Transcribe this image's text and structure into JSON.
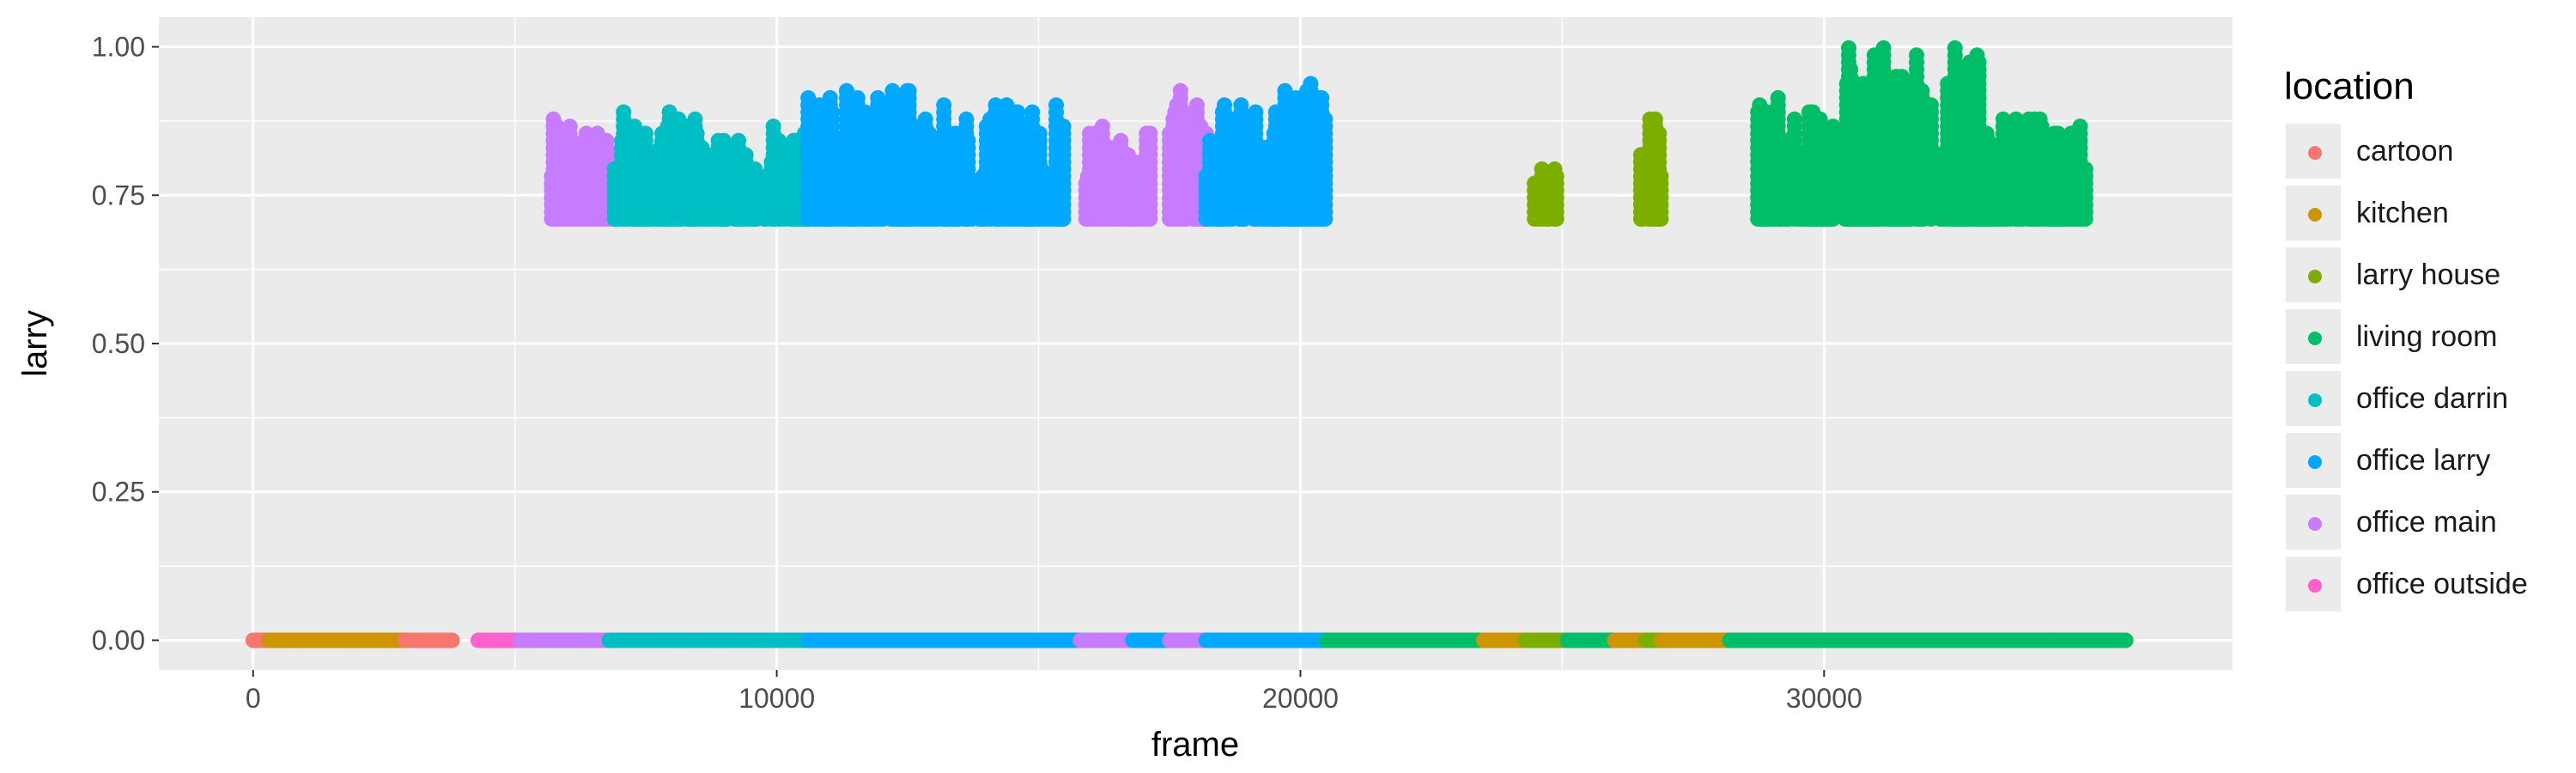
{
  "chart_data": {
    "type": "scatter",
    "xlabel": "frame",
    "ylabel": "larry",
    "xlim": [
      -1800,
      37800
    ],
    "ylim": [
      -0.05,
      1.05
    ],
    "x_ticks": [
      0,
      10000,
      20000,
      30000
    ],
    "x_tick_labels": [
      "0",
      "10000",
      "20000",
      "30000"
    ],
    "y_ticks": [
      0,
      0.25,
      0.5,
      0.75,
      1.0
    ],
    "y_tick_labels": [
      "0.00",
      "0.25",
      "0.50",
      "0.75",
      "1.00"
    ],
    "grid": true,
    "legend": {
      "title": "location",
      "placement": "right",
      "entries": [
        {
          "name": "cartoon",
          "color": "#F8766D"
        },
        {
          "name": "kitchen",
          "color": "#CD9600"
        },
        {
          "name": "larry house",
          "color": "#7CAE00"
        },
        {
          "name": "living room",
          "color": "#00BE67"
        },
        {
          "name": "office darrin",
          "color": "#00BFC4"
        },
        {
          "name": "office larry",
          "color": "#00A9FF"
        },
        {
          "name": "office main",
          "color": "#C77CFF"
        },
        {
          "name": "office outside",
          "color": "#FF61CC"
        }
      ]
    },
    "baseline_segments": [
      {
        "series": "cartoon",
        "y": 0,
        "x_range": [
          0,
          300
        ]
      },
      {
        "series": "kitchen",
        "y": 0,
        "x_range": [
          300,
          2900
        ]
      },
      {
        "series": "cartoon",
        "y": 0,
        "x_range": [
          2900,
          3800
        ]
      },
      {
        "series": "office outside",
        "y": 0,
        "x_range": [
          4300,
          5100
        ]
      },
      {
        "series": "office main",
        "y": 0,
        "x_range": [
          5100,
          6800
        ]
      },
      {
        "series": "office darrin",
        "y": 0,
        "x_range": [
          6800,
          10600
        ]
      },
      {
        "series": "office larry",
        "y": 0,
        "x_range": [
          10600,
          15800
        ]
      },
      {
        "series": "office main",
        "y": 0,
        "x_range": [
          15800,
          16800
        ]
      },
      {
        "series": "office larry",
        "y": 0,
        "x_range": [
          16800,
          17500
        ]
      },
      {
        "series": "office main",
        "y": 0,
        "x_range": [
          17500,
          18200
        ]
      },
      {
        "series": "office larry",
        "y": 0,
        "x_range": [
          18200,
          20500
        ]
      },
      {
        "series": "living room",
        "y": 0,
        "x_range": [
          20500,
          23500
        ]
      },
      {
        "series": "kitchen",
        "y": 0,
        "x_range": [
          23500,
          24300
        ]
      },
      {
        "series": "larry house",
        "y": 0,
        "x_range": [
          24300,
          25100
        ]
      },
      {
        "series": "living room",
        "y": 0,
        "x_range": [
          25100,
          26000
        ]
      },
      {
        "series": "kitchen",
        "y": 0,
        "x_range": [
          26000,
          26600
        ]
      },
      {
        "series": "larry house",
        "y": 0,
        "x_range": [
          26600,
          26900
        ]
      },
      {
        "series": "kitchen",
        "y": 0,
        "x_range": [
          26900,
          28200
        ]
      },
      {
        "series": "living room",
        "y": 0,
        "x_range": [
          28200,
          35800
        ]
      }
    ],
    "upper_clusters": [
      {
        "series": "office main",
        "x_range": [
          5700,
          6900
        ],
        "y_range": [
          0.71,
          0.88
        ]
      },
      {
        "series": "office darrin",
        "x_range": [
          6900,
          8500
        ],
        "y_range": [
          0.71,
          0.9
        ]
      },
      {
        "series": "office darrin",
        "x_range": [
          8500,
          10600
        ],
        "y_range": [
          0.71,
          0.87
        ]
      },
      {
        "series": "office larry",
        "x_range": [
          10600,
          13200
        ],
        "y_range": [
          0.71,
          0.93
        ]
      },
      {
        "series": "office larry",
        "x_range": [
          13200,
          15500
        ],
        "y_range": [
          0.71,
          0.91
        ]
      },
      {
        "series": "office main",
        "x_range": [
          15800,
          17200
        ],
        "y_range": [
          0.71,
          0.87
        ]
      },
      {
        "series": "office main",
        "x_range": [
          17500,
          18200
        ],
        "y_range": [
          0.71,
          0.94
        ]
      },
      {
        "series": "office larry",
        "x_range": [
          18200,
          20500
        ],
        "y_range": [
          0.71,
          0.95
        ]
      },
      {
        "series": "larry house",
        "x_range": [
          24400,
          24900
        ],
        "y_range": [
          0.71,
          0.82
        ]
      },
      {
        "series": "larry house",
        "x_range": [
          26500,
          26900
        ],
        "y_range": [
          0.71,
          0.9
        ]
      },
      {
        "series": "living room",
        "x_range": [
          28700,
          30200
        ],
        "y_range": [
          0.71,
          0.93
        ]
      },
      {
        "series": "living room",
        "x_range": [
          30400,
          33000
        ],
        "y_range": [
          0.71,
          1.0
        ]
      },
      {
        "series": "living room",
        "x_range": [
          33000,
          35000
        ],
        "y_range": [
          0.71,
          0.89
        ]
      }
    ]
  }
}
